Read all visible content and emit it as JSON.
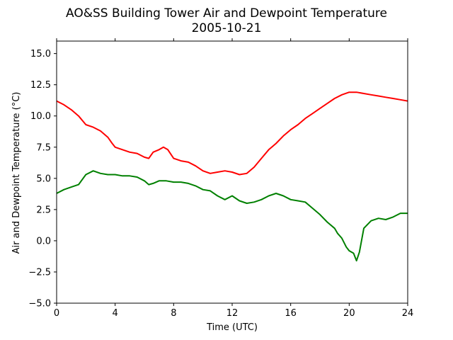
{
  "chart_data": {
    "type": "line",
    "title": "AO&SS Building Tower Air and Dewpoint Temperature",
    "subtitle": "2005-10-21",
    "xlabel": "Time (UTC)",
    "ylabel": "Air and Dewpoint Temperature (°C)",
    "xlim": [
      0,
      24
    ],
    "ylim": [
      -5.0,
      16.0
    ],
    "xticks": [
      0,
      4,
      8,
      12,
      16,
      20,
      24
    ],
    "xtick_labels": [
      "0",
      "4",
      "8",
      "12",
      "16",
      "20",
      "24"
    ],
    "yticks": [
      -5.0,
      -2.5,
      0.0,
      2.5,
      5.0,
      7.5,
      10.0,
      12.5,
      15.0
    ],
    "ytick_labels": [
      "−5.0",
      "−2.5",
      "0.0",
      "2.5",
      "5.0",
      "7.5",
      "10.0",
      "12.5",
      "15.0"
    ],
    "grid": false,
    "series": [
      {
        "color": "#ff0000",
        "x": [
          0,
          0.5,
          1,
          1.5,
          2,
          2.5,
          3,
          3.5,
          3.8,
          4,
          4.5,
          5,
          5.5,
          6,
          6.3,
          6.6,
          7,
          7.3,
          7.6,
          8,
          8.5,
          9,
          9.5,
          10,
          10.5,
          11,
          11.5,
          12,
          12.5,
          13,
          13.5,
          14,
          14.5,
          15,
          15.5,
          16,
          16.5,
          17,
          17.5,
          18,
          18.5,
          19,
          19.5,
          20,
          20.5,
          21,
          21.5,
          22,
          22.5,
          23,
          23.5,
          24
        ],
        "y": [
          11.2,
          10.9,
          10.5,
          10.0,
          9.3,
          9.1,
          8.8,
          8.3,
          7.8,
          7.5,
          7.3,
          7.1,
          7.0,
          6.7,
          6.6,
          7.1,
          7.3,
          7.5,
          7.3,
          6.6,
          6.4,
          6.3,
          6.0,
          5.6,
          5.4,
          5.5,
          5.6,
          5.5,
          5.3,
          5.4,
          5.9,
          6.6,
          7.3,
          7.8,
          8.4,
          8.9,
          9.3,
          9.8,
          10.2,
          10.6,
          11.0,
          11.4,
          11.7,
          11.9,
          11.9,
          11.8,
          11.7,
          11.6,
          11.5,
          11.4,
          11.3,
          11.2
        ]
      },
      {
        "color": "#008000",
        "x": [
          0,
          0.5,
          1,
          1.5,
          2,
          2.5,
          3,
          3.5,
          4,
          4.5,
          5,
          5.5,
          6,
          6.3,
          6.6,
          7,
          7.5,
          8,
          8.5,
          9,
          9.5,
          10,
          10.5,
          11,
          11.5,
          12,
          12.5,
          13,
          13.5,
          14,
          14.5,
          15,
          15.5,
          16,
          16.5,
          17,
          17.5,
          18,
          18.5,
          19,
          19.2,
          19.5,
          19.8,
          20,
          20.3,
          20.5,
          20.7,
          21,
          21.5,
          22,
          22.5,
          23,
          23.5,
          24
        ],
        "y": [
          3.8,
          4.1,
          4.3,
          4.5,
          5.3,
          5.6,
          5.4,
          5.3,
          5.3,
          5.2,
          5.2,
          5.1,
          4.8,
          4.5,
          4.6,
          4.8,
          4.8,
          4.7,
          4.7,
          4.6,
          4.4,
          4.1,
          4.0,
          3.6,
          3.3,
          3.6,
          3.2,
          3.0,
          3.1,
          3.3,
          3.6,
          3.8,
          3.6,
          3.3,
          3.2,
          3.1,
          2.6,
          2.1,
          1.5,
          1.0,
          0.6,
          0.2,
          -0.5,
          -0.8,
          -1.0,
          -1.6,
          -0.9,
          1.0,
          1.6,
          1.8,
          1.7,
          1.9,
          2.2,
          2.2
        ]
      }
    ]
  }
}
